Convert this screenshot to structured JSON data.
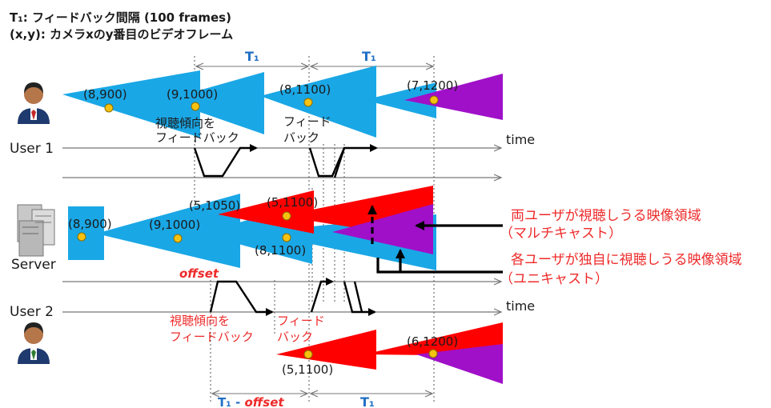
{
  "header": {
    "line1": "T₁: フィードバック間隔 (100 frames)",
    "line2": "(x,y): カメラxのy番目のビデオフレーム"
  },
  "intervals": {
    "top_first": "T₁",
    "top_second": "T₁",
    "bottom_first_prefix": "T₁ - ",
    "bottom_first_offset": "offset",
    "bottom_second": "T₁"
  },
  "actors": {
    "user1": "User 1",
    "server": "Server",
    "user2": "User 2"
  },
  "timeline": {
    "time_label_1": "time",
    "time_label_2": "time"
  },
  "frames": {
    "u1_a": "(8,900)",
    "u1_b": "(9,1000)",
    "u1_c": "(8,1100)",
    "u1_d": "(7,1200)",
    "srv_a": "(8,900)",
    "srv_b": "(9,1000)",
    "srv_c": "(5,1050)",
    "srv_d": "(5,1100)",
    "srv_e": "(8,1100)",
    "u2_a": "(5,1100)",
    "u2_b": "(6,1200)"
  },
  "feedback_labels": {
    "u1_view_line1": "視聴傾向を",
    "u1_view_line2": "フィードバック",
    "u1_fb_line1": "フィード",
    "u1_fb_line2": "バック",
    "u2_view_line1": "視聴傾向を",
    "u2_view_line2": "フィードバック",
    "u2_fb_line1": "フィード",
    "u2_fb_line2": "バック",
    "offset": "offset"
  },
  "callouts": {
    "multicast_line1": "両ユーザが視聴しうる映像領域",
    "multicast_line2": "（マルチキャスト）",
    "unicast_line1": "各ユーザが独自に視聴しうる映像領域",
    "unicast_line2": "（ユニキャスト）"
  },
  "colors": {
    "cyan": "#1aa7e6",
    "red": "#ff0000",
    "purple": "#a010c8",
    "dot": "#f6c20f",
    "label_red": "#ee2a2a",
    "label_blue": "#1f6fc4"
  }
}
